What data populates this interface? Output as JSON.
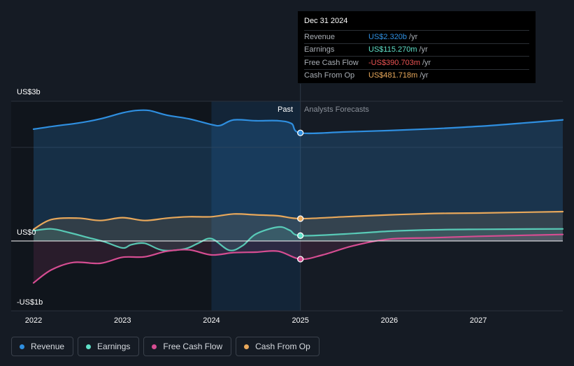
{
  "chart_data": {
    "type": "line",
    "x_label_ticks": [
      "2022",
      "2023",
      "2024",
      "2025",
      "2026",
      "2027"
    ],
    "y_labels": {
      "top": "US$3b",
      "zero": "US$0",
      "bottom": "-US$1b"
    },
    "ylim": [
      -1.0,
      3.0
    ],
    "xlim": [
      2022.0,
      2027.95
    ],
    "past_label": "Past",
    "forecast_label": "Analysts Forecasts",
    "divider_x": 2025.0,
    "highlight_range": [
      2024.0,
      2025.0
    ],
    "series": [
      {
        "name": "Revenue",
        "color": "#2f8fe0",
        "points": [
          [
            2022.0,
            2.4
          ],
          [
            2022.25,
            2.47
          ],
          [
            2022.5,
            2.53
          ],
          [
            2022.75,
            2.62
          ],
          [
            2023.0,
            2.75
          ],
          [
            2023.15,
            2.8
          ],
          [
            2023.3,
            2.8
          ],
          [
            2023.5,
            2.7
          ],
          [
            2023.75,
            2.62
          ],
          [
            2024.0,
            2.5
          ],
          [
            2024.1,
            2.48
          ],
          [
            2024.25,
            2.6
          ],
          [
            2024.5,
            2.58
          ],
          [
            2024.75,
            2.58
          ],
          [
            2024.9,
            2.52
          ],
          [
            2025.0,
            2.32
          ],
          [
            2025.5,
            2.34
          ],
          [
            2026.0,
            2.37
          ],
          [
            2026.5,
            2.41
          ],
          [
            2027.0,
            2.46
          ],
          [
            2027.5,
            2.53
          ],
          [
            2027.95,
            2.6
          ]
        ],
        "forecast_from": 2025.0
      },
      {
        "name": "Earnings",
        "color": "#5fe0c8",
        "points": [
          [
            2022.0,
            0.22
          ],
          [
            2022.2,
            0.26
          ],
          [
            2022.4,
            0.18
          ],
          [
            2022.6,
            0.08
          ],
          [
            2022.8,
            -0.02
          ],
          [
            2023.0,
            -0.15
          ],
          [
            2023.1,
            -0.08
          ],
          [
            2023.25,
            -0.05
          ],
          [
            2023.45,
            -0.2
          ],
          [
            2023.7,
            -0.17
          ],
          [
            2023.85,
            -0.05
          ],
          [
            2024.0,
            0.05
          ],
          [
            2024.2,
            -0.2
          ],
          [
            2024.35,
            -0.1
          ],
          [
            2024.5,
            0.15
          ],
          [
            2024.75,
            0.3
          ],
          [
            2024.88,
            0.23
          ],
          [
            2025.0,
            0.115
          ],
          [
            2025.5,
            0.15
          ],
          [
            2026.0,
            0.21
          ],
          [
            2026.5,
            0.24
          ],
          [
            2027.0,
            0.25
          ],
          [
            2027.95,
            0.26
          ]
        ],
        "forecast_from": 2025.0
      },
      {
        "name": "Free Cash Flow",
        "color": "#d64d92",
        "points": [
          [
            2022.0,
            -0.9
          ],
          [
            2022.2,
            -0.62
          ],
          [
            2022.45,
            -0.46
          ],
          [
            2022.75,
            -0.48
          ],
          [
            2023.0,
            -0.35
          ],
          [
            2023.25,
            -0.34
          ],
          [
            2023.5,
            -0.22
          ],
          [
            2023.75,
            -0.19
          ],
          [
            2024.0,
            -0.3
          ],
          [
            2024.25,
            -0.25
          ],
          [
            2024.5,
            -0.24
          ],
          [
            2024.75,
            -0.22
          ],
          [
            2025.0,
            -0.39
          ],
          [
            2025.25,
            -0.3
          ],
          [
            2025.6,
            -0.1
          ],
          [
            2026.0,
            0.04
          ],
          [
            2026.5,
            0.07
          ],
          [
            2027.0,
            0.1
          ],
          [
            2027.95,
            0.14
          ]
        ],
        "forecast_from": 2025.0
      },
      {
        "name": "Cash From Op",
        "color": "#e8a85b",
        "points": [
          [
            2022.0,
            0.25
          ],
          [
            2022.2,
            0.46
          ],
          [
            2022.5,
            0.49
          ],
          [
            2022.75,
            0.44
          ],
          [
            2023.0,
            0.5
          ],
          [
            2023.25,
            0.44
          ],
          [
            2023.5,
            0.49
          ],
          [
            2023.75,
            0.52
          ],
          [
            2024.0,
            0.52
          ],
          [
            2024.25,
            0.58
          ],
          [
            2024.5,
            0.56
          ],
          [
            2024.75,
            0.54
          ],
          [
            2025.0,
            0.48
          ],
          [
            2025.5,
            0.52
          ],
          [
            2026.0,
            0.56
          ],
          [
            2026.5,
            0.59
          ],
          [
            2027.0,
            0.6
          ],
          [
            2027.95,
            0.63
          ]
        ],
        "forecast_from": 2025.0
      }
    ]
  },
  "tooltip": {
    "date": "Dec 31 2024",
    "rows": [
      {
        "label": "Revenue",
        "value": "US$2.320b",
        "unit": "/yr",
        "color": "#2f8fe0"
      },
      {
        "label": "Earnings",
        "value": "US$115.270m",
        "unit": "/yr",
        "color": "#5fe0c8"
      },
      {
        "label": "Free Cash Flow",
        "value": "-US$390.703m",
        "unit": "/yr",
        "color": "#ec5353"
      },
      {
        "label": "Cash From Op",
        "value": "US$481.718m",
        "unit": "/yr",
        "color": "#e8a85b"
      }
    ]
  },
  "legend": [
    {
      "label": "Revenue",
      "color": "#2f8fe0"
    },
    {
      "label": "Earnings",
      "color": "#5fe0c8"
    },
    {
      "label": "Free Cash Flow",
      "color": "#d64d92"
    },
    {
      "label": "Cash From Op",
      "color": "#e8a85b"
    }
  ]
}
